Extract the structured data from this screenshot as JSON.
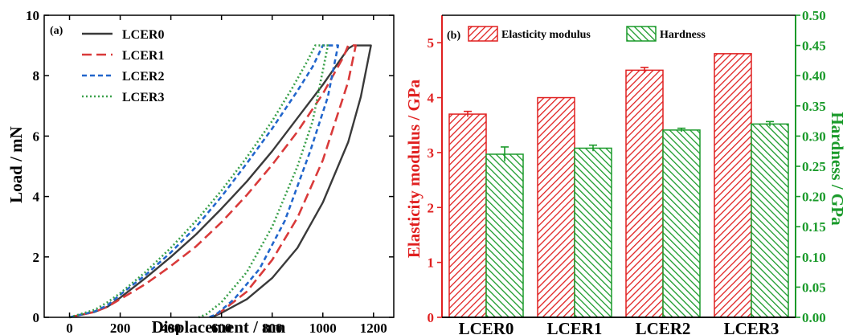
{
  "colors": {
    "lcer0": "#3a3a3a",
    "lcer1": "#d93a3a",
    "lcer2": "#2266cc",
    "lcer3": "#3aa04a",
    "modulus": "#e02020",
    "hardness": "#1a9a2a"
  },
  "chart_data": [
    {
      "type": "line",
      "panel_label": "(a)",
      "xlabel": "Displacement / nm",
      "ylabel": "Load / mN",
      "xlim": [
        -100,
        1280
      ],
      "ylim": [
        0,
        10
      ],
      "xticks": [
        0,
        200,
        400,
        600,
        800,
        1000,
        1200
      ],
      "yticks": [
        0,
        2,
        4,
        6,
        8,
        10
      ],
      "legend_position": "top-left",
      "series": [
        {
          "name": "LCER0",
          "style": "solid",
          "color_key": "lcer0",
          "loading": [
            [
              0,
              0
            ],
            [
              100,
              0.18
            ],
            [
              150,
              0.35
            ],
            [
              200,
              0.65
            ],
            [
              300,
              1.3
            ],
            [
              400,
              2.0
            ],
            [
              500,
              2.75
            ],
            [
              600,
              3.6
            ],
            [
              700,
              4.5
            ],
            [
              800,
              5.5
            ],
            [
              900,
              6.6
            ],
            [
              1000,
              7.7
            ],
            [
              1100,
              8.9
            ],
            [
              1120,
              9.0
            ]
          ],
          "hold": [
            [
              1120,
              9.0
            ],
            [
              1190,
              9.0
            ]
          ],
          "unloading": [
            [
              1190,
              9.0
            ],
            [
              1150,
              7.3
            ],
            [
              1100,
              5.8
            ],
            [
              1000,
              3.8
            ],
            [
              900,
              2.3
            ],
            [
              800,
              1.3
            ],
            [
              700,
              0.6
            ],
            [
              600,
              0.15
            ],
            [
              560,
              0
            ]
          ]
        },
        {
          "name": "LCER1",
          "style": "dash",
          "color_key": "lcer1",
          "loading": [
            [
              0,
              0
            ],
            [
              100,
              0.18
            ],
            [
              150,
              0.35
            ],
            [
              200,
              0.6
            ],
            [
              300,
              1.1
            ],
            [
              400,
              1.7
            ],
            [
              500,
              2.35
            ],
            [
              600,
              3.15
            ],
            [
              700,
              4.05
            ],
            [
              800,
              5.05
            ],
            [
              900,
              6.15
            ],
            [
              1000,
              7.4
            ],
            [
              1080,
              8.6
            ],
            [
              1100,
              9.0
            ]
          ],
          "hold": [
            [
              1100,
              9.0
            ],
            [
              1130,
              9.0
            ]
          ],
          "unloading": [
            [
              1130,
              9.0
            ],
            [
              1100,
              7.8
            ],
            [
              1000,
              5.2
            ],
            [
              900,
              3.3
            ],
            [
              800,
              1.9
            ],
            [
              700,
              0.85
            ],
            [
              600,
              0.2
            ],
            [
              560,
              0
            ]
          ]
        },
        {
          "name": "LCER2",
          "style": "shortdash",
          "color_key": "lcer2",
          "loading": [
            [
              0,
              0
            ],
            [
              100,
              0.2
            ],
            [
              150,
              0.4
            ],
            [
              200,
              0.75
            ],
            [
              300,
              1.4
            ],
            [
              400,
              2.15
            ],
            [
              500,
              3.0
            ],
            [
              600,
              4.0
            ],
            [
              700,
              5.1
            ],
            [
              800,
              6.25
            ],
            [
              900,
              7.5
            ],
            [
              960,
              8.3
            ],
            [
              1000,
              9.0
            ]
          ],
          "hold": [
            [
              1000,
              9.0
            ],
            [
              1060,
              9.0
            ]
          ],
          "unloading": [
            [
              1060,
              9.0
            ],
            [
              1020,
              7.3
            ],
            [
              950,
              5.5
            ],
            [
              850,
              3.2
            ],
            [
              750,
              1.6
            ],
            [
              650,
              0.6
            ],
            [
              580,
              0.1
            ],
            [
              550,
              0
            ]
          ]
        },
        {
          "name": "LCER3",
          "style": "dot",
          "color_key": "lcer3",
          "loading": [
            [
              0,
              0
            ],
            [
              100,
              0.25
            ],
            [
              150,
              0.5
            ],
            [
              200,
              0.8
            ],
            [
              300,
              1.5
            ],
            [
              400,
              2.3
            ],
            [
              500,
              3.2
            ],
            [
              600,
              4.2
            ],
            [
              700,
              5.3
            ],
            [
              800,
              6.5
            ],
            [
              880,
              7.6
            ],
            [
              940,
              8.5
            ],
            [
              970,
              9.0
            ]
          ],
          "hold": [
            [
              970,
              9.0
            ],
            [
              1020,
              9.0
            ]
          ],
          "unloading": [
            [
              1020,
              9.0
            ],
            [
              960,
              6.5
            ],
            [
              900,
              5.0
            ],
            [
              800,
              3.0
            ],
            [
              700,
              1.5
            ],
            [
              600,
              0.5
            ],
            [
              540,
              0.1
            ],
            [
              510,
              0
            ]
          ]
        }
      ]
    },
    {
      "type": "bar",
      "panel_label": "(b)",
      "categories": [
        "LCER0",
        "LCER1",
        "LCER2",
        "LCER3"
      ],
      "ylabel": "Elasticity modulus / GPa",
      "y2label": "Hardness / GPa",
      "ylim": [
        0,
        5.5
      ],
      "y2lim": [
        0,
        0.5
      ],
      "yticks": [
        0,
        1,
        2,
        3,
        4,
        5
      ],
      "y2ticks": [
        "0.00",
        "0.05",
        "0.10",
        "0.15",
        "0.20",
        "0.25",
        "0.30",
        "0.35",
        "0.40",
        "0.45",
        "0.50"
      ],
      "legend_position": "top",
      "series": [
        {
          "name": "Elasticity modulus",
          "axis": "left",
          "color_key": "modulus",
          "values": [
            3.7,
            4.0,
            4.5,
            4.8
          ],
          "errors": [
            0.05,
            0.0,
            0.05,
            0.0
          ]
        },
        {
          "name": "Hardness",
          "axis": "right",
          "color_key": "hardness",
          "values": [
            0.27,
            0.28,
            0.31,
            0.32
          ],
          "errors": [
            0.012,
            0.005,
            0.003,
            0.004
          ]
        }
      ]
    }
  ]
}
